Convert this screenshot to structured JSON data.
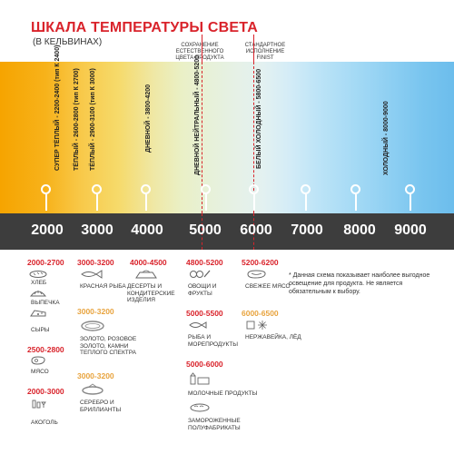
{
  "header": {
    "title": "ШКАЛА ТЕМПЕРАТУРЫ СВЕТА",
    "subtitle": "(В КЕЛЬВИНАХ)"
  },
  "callouts": {
    "natural": "СОХРАНЕНИЕ ЕСТЕСТВЕННОГО ЦВЕТА ПРОДУКТА",
    "finist": "СТАНДАРТНОЕ ИСПОЛНЕНИЕ FINIST"
  },
  "spectrum_labels": [
    "СУПЕР ТЁПЛЫЙ - 2200-2400 (тип К 2400)",
    "ТЁПЛЫЙ - 2600-2800 (тип К 2700)",
    "ТЁПЛЫЙ - 2900-3100 (тип К 3000)",
    "ДНЕВНОЙ - 3800-4200",
    "ДНЕВНОЙ НЕЙТРАЛЬНЫЙ - 4800-5200",
    "БЕЛЫЙ ХОЛОДНЫЙ - 5800-6500",
    "ХОЛОДНЫЙ - 8000-9000"
  ],
  "kelvin_scale": [
    "2000",
    "3000",
    "4000",
    "5000",
    "6000",
    "7000",
    "8000",
    "9000"
  ],
  "groups": {
    "col1": {
      "h1": "2000-2700",
      "items1": [
        "ХЛЕБ",
        "ВЫПЕЧКА",
        "СЫРЫ"
      ],
      "h2": "2500-2800",
      "items2": [
        "МЯСО"
      ],
      "h3": "2000-3000",
      "items3": [
        "АКОГОЛЬ"
      ]
    },
    "col2": {
      "h1": "3000-3200",
      "items1": [
        "КРАСНАЯ РЫБА"
      ],
      "h2": "3000-3200",
      "items2": [
        "ЗОЛОТО, РОЗОВОЕ ЗОЛОТО, КАМНИ ТЕПЛОГО СПЕКТРА"
      ],
      "h3": "3000-3200",
      "items3": [
        "СЕРЕБРО И БРИЛЛИАНТЫ"
      ]
    },
    "col3": {
      "h1": "4000-4500",
      "items1": [
        "ДЕСЕРТЫ И КОНДИТЕРСКИЕ ИЗДЕЛИЯ"
      ]
    },
    "col4": {
      "h1": "4800-5200",
      "items1": [
        "ОВОЩИ И ФРУКТЫ"
      ],
      "h2": "5000-5500",
      "items2": [
        "РЫБА И МОРЕПРОДУКТЫ"
      ],
      "h3": "5000-6000",
      "items3": [
        "МОЛОЧНЫЕ ПРОДУКТЫ",
        "ЗАМОРОЖЕННЫЕ ПОЛУФАБРИКАТЫ"
      ]
    },
    "col5": {
      "h1": "5200-6200",
      "items1": [
        "СВЕЖЕЕ МЯСО"
      ],
      "h2": "6000-6500",
      "items2": [
        "НЕРЖАВЕЙКА, ЛЁД"
      ]
    }
  },
  "note": "* Данная схема показывает наиболее выгодное освещение для продукта. Не является обязательным к выбору.",
  "colors": {
    "accent": "#d9232b",
    "gold": "#e8a33d",
    "bar": "#3d3d3d"
  }
}
